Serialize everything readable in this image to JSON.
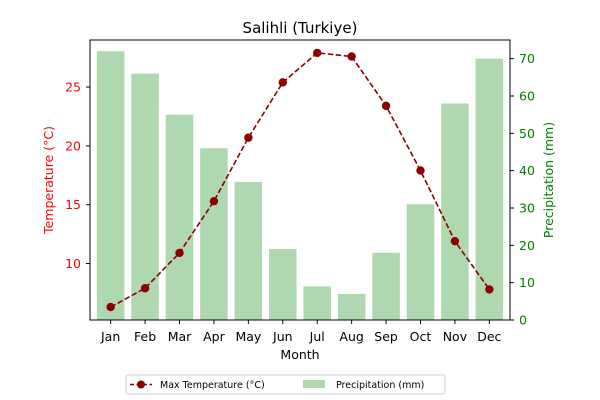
{
  "chart_data": {
    "type": "bar+line",
    "title": "Salihli (Turkiye)",
    "xlabel": "Month",
    "ylabel_left": "Temperature (°C)",
    "ylabel_right": "Precipitation (mm)",
    "categories": [
      "Jan",
      "Feb",
      "Mar",
      "Apr",
      "May",
      "Jun",
      "Jul",
      "Aug",
      "Sep",
      "Oct",
      "Nov",
      "Dec"
    ],
    "ylim_left": [
      5.2,
      29.0
    ],
    "ylim_right": [
      0,
      75
    ],
    "yticks_left": [
      10,
      15,
      20,
      25
    ],
    "yticks_right": [
      0,
      10,
      20,
      30,
      40,
      50,
      60,
      70
    ],
    "series": [
      {
        "name": "Max Temperature (°C)",
        "kind": "line",
        "axis": "left",
        "color": "#8b0000",
        "style": "dashed",
        "marker": "circle",
        "values": [
          6.3,
          7.9,
          10.9,
          15.3,
          20.7,
          25.4,
          27.9,
          27.6,
          23.4,
          17.9,
          11.9,
          7.8
        ]
      },
      {
        "name": "Precipitation (mm)",
        "kind": "bar",
        "axis": "right",
        "color": "#b0d8b0",
        "values": [
          72,
          66,
          55,
          46,
          37,
          19,
          9,
          7,
          18,
          31,
          58,
          70
        ]
      }
    ],
    "legend_position": "bottom-center",
    "left_axis_color": "#ff0000",
    "right_axis_color": "#008000",
    "grid": false
  }
}
